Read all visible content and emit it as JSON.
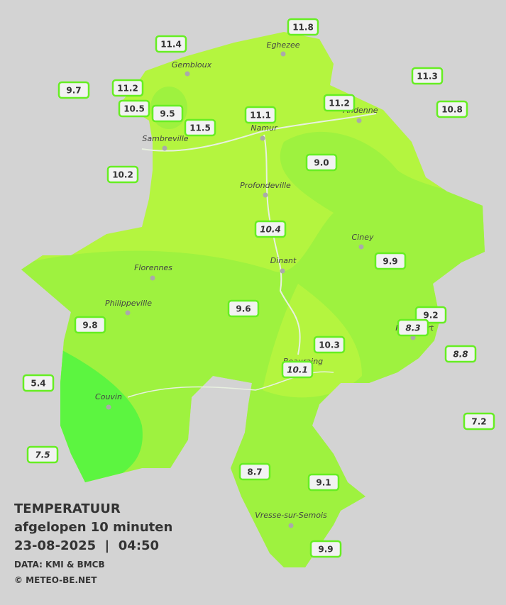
{
  "header": {
    "title": "TEMPERATUUR",
    "subtitle": "afgelopen 10 minuten",
    "timestamp": "23-08-2025  |  04:50",
    "source": "DATA: KMI & BMCB",
    "copyright": "© METEO-BE.NET"
  },
  "cities": [
    "Eghezee",
    "Gembloux",
    "Andenne",
    "Namur",
    "Sambreville",
    "Profondeville",
    "Ciney",
    "Dinant",
    "Florennes",
    "Philippeville",
    "Rochefort",
    "Beauraing",
    "Couvin",
    "Vresse-sur-Semois"
  ],
  "stations": [
    {
      "value": "11.8",
      "italic": false
    },
    {
      "value": "11.4",
      "italic": false
    },
    {
      "value": "11.3",
      "italic": false
    },
    {
      "value": "9.7",
      "italic": false
    },
    {
      "value": "11.2",
      "italic": false
    },
    {
      "value": "11.2",
      "italic": false
    },
    {
      "value": "10.5",
      "italic": false
    },
    {
      "value": "9.5",
      "italic": false
    },
    {
      "value": "11.1",
      "italic": false
    },
    {
      "value": "10.8",
      "italic": false
    },
    {
      "value": "11.5",
      "italic": false
    },
    {
      "value": "9.0",
      "italic": false
    },
    {
      "value": "10.2",
      "italic": false
    },
    {
      "value": "10.4",
      "italic": true
    },
    {
      "value": "9.9",
      "italic": false
    },
    {
      "value": "9.6",
      "italic": false
    },
    {
      "value": "9.2",
      "italic": false
    },
    {
      "value": "8.3",
      "italic": true
    },
    {
      "value": "9.8",
      "italic": false
    },
    {
      "value": "8.8",
      "italic": true
    },
    {
      "value": "10.3",
      "italic": false
    },
    {
      "value": "10.1",
      "italic": true
    },
    {
      "value": "5.4",
      "italic": false
    },
    {
      "value": "7.2",
      "italic": false
    },
    {
      "value": "7.5",
      "italic": true
    },
    {
      "value": "8.7",
      "italic": false
    },
    {
      "value": "9.1",
      "italic": false
    },
    {
      "value": "9.9",
      "italic": false
    }
  ]
}
